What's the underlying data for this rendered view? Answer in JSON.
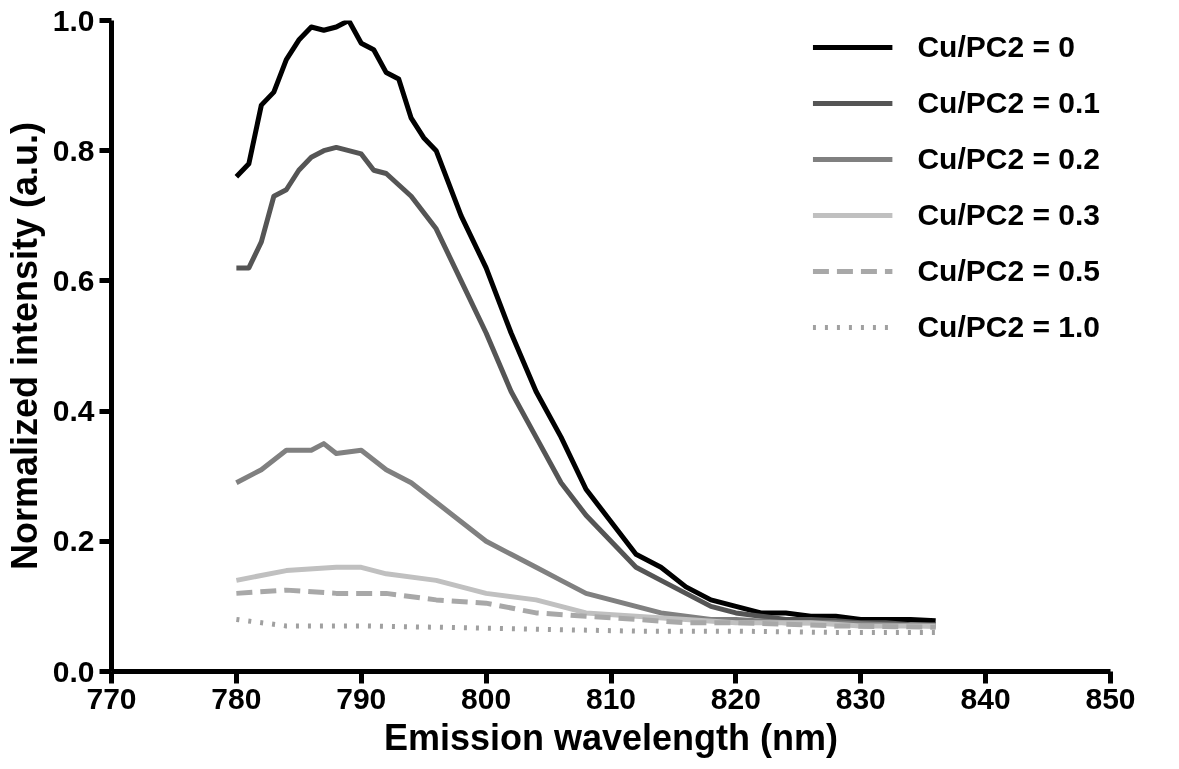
{
  "chart_data": {
    "type": "line",
    "xlabel": "Emission wavelength (nm)",
    "ylabel": "Normalized intensity (a.u.)",
    "xlim": [
      770,
      850
    ],
    "xticks": [
      770,
      780,
      790,
      800,
      810,
      820,
      830,
      840,
      850
    ],
    "ylim": [
      0,
      1.0
    ],
    "yticks": [
      {
        "value": 0,
        "label": "0.0"
      },
      0.2,
      0.4,
      0.6,
      0.8,
      {
        "value": 1.0,
        "label": "1.0"
      }
    ],
    "grid": false,
    "legend": "top right",
    "marker": "none",
    "series": [
      {
        "name": "Cu/PC2 = 0",
        "color": "#000000",
        "line_style": "solid",
        "x": [
          780,
          781,
          782,
          783,
          784,
          785,
          786,
          787,
          788,
          789,
          790,
          791,
          792,
          793,
          794,
          795,
          796,
          798,
          800,
          802,
          804,
          806,
          808,
          810,
          812,
          814,
          816,
          818,
          820,
          822,
          824,
          826,
          828,
          830,
          832,
          834,
          836
        ],
        "values": [
          0.76,
          0.78,
          0.87,
          0.89,
          0.94,
          0.97,
          0.99,
          0.985,
          0.99,
          1.0,
          0.965,
          0.955,
          0.92,
          0.91,
          0.85,
          0.82,
          0.8,
          0.7,
          0.62,
          0.52,
          0.43,
          0.36,
          0.28,
          0.23,
          0.18,
          0.16,
          0.13,
          0.11,
          0.1,
          0.09,
          0.09,
          0.085,
          0.085,
          0.08,
          0.08,
          0.08,
          0.078
        ]
      },
      {
        "name": "Cu/PC2 = 0.1",
        "color": "#555555",
        "line_style": "solid",
        "x": [
          780,
          781,
          782,
          783,
          784,
          785,
          786,
          787,
          788,
          789,
          790,
          791,
          792,
          794,
          796,
          798,
          800,
          802,
          804,
          806,
          808,
          810,
          812,
          814,
          816,
          818,
          820,
          822,
          824,
          826,
          828,
          830,
          832,
          834,
          836
        ],
        "values": [
          0.62,
          0.62,
          0.66,
          0.73,
          0.74,
          0.77,
          0.79,
          0.8,
          0.805,
          0.8,
          0.795,
          0.77,
          0.765,
          0.73,
          0.68,
          0.6,
          0.52,
          0.43,
          0.36,
          0.29,
          0.24,
          0.2,
          0.16,
          0.14,
          0.12,
          0.1,
          0.09,
          0.085,
          0.08,
          0.08,
          0.078,
          0.075,
          0.075,
          0.072,
          0.072
        ]
      },
      {
        "name": "Cu/PC2 = 0.2",
        "color": "#808080",
        "line_style": "solid",
        "x": [
          780,
          782,
          784,
          786,
          787,
          788,
          790,
          792,
          794,
          796,
          798,
          800,
          802,
          804,
          806,
          808,
          810,
          812,
          814,
          816,
          818,
          820,
          824,
          828,
          832,
          836
        ],
        "values": [
          0.29,
          0.31,
          0.34,
          0.34,
          0.35,
          0.335,
          0.34,
          0.31,
          0.29,
          0.26,
          0.23,
          0.2,
          0.18,
          0.16,
          0.14,
          0.12,
          0.11,
          0.1,
          0.09,
          0.085,
          0.08,
          0.08,
          0.075,
          0.075,
          0.072,
          0.07
        ]
      },
      {
        "name": "Cu/PC2 = 0.3",
        "color": "#c0c0c0",
        "line_style": "solid",
        "x": [
          780,
          784,
          788,
          790,
          792,
          796,
          800,
          804,
          808,
          812,
          816,
          820,
          826,
          830,
          836
        ],
        "values": [
          0.14,
          0.155,
          0.16,
          0.16,
          0.15,
          0.14,
          0.12,
          0.11,
          0.09,
          0.085,
          0.08,
          0.075,
          0.075,
          0.07,
          0.07
        ]
      },
      {
        "name": "Cu/PC2 = 0.5",
        "color": "#a8a8a8",
        "line_style": "dashed",
        "x": [
          780,
          784,
          788,
          792,
          796,
          800,
          804,
          808,
          812,
          816,
          820,
          828,
          836
        ],
        "values": [
          0.12,
          0.125,
          0.12,
          0.12,
          0.11,
          0.105,
          0.09,
          0.085,
          0.08,
          0.075,
          0.075,
          0.07,
          0.068
        ]
      },
      {
        "name": "Cu/PC2 = 1.0",
        "color": "#a0a0a0",
        "line_style": "dotted",
        "x": [
          780,
          784,
          790,
          796,
          804,
          812,
          820,
          828,
          836
        ],
        "values": [
          0.08,
          0.07,
          0.07,
          0.068,
          0.065,
          0.062,
          0.062,
          0.06,
          0.06
        ]
      }
    ]
  }
}
